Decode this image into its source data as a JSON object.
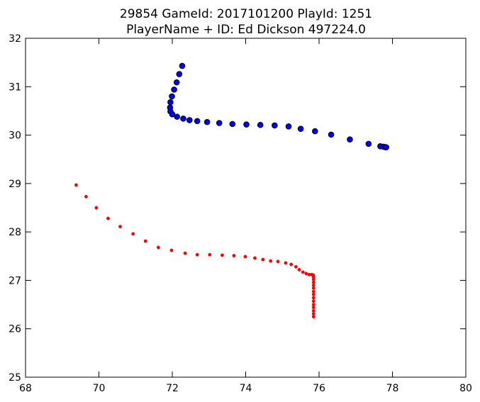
{
  "chart_data": {
    "type": "scatter",
    "title": "29854 GameId: 2017101200 PlayId: 1251",
    "subtitle": "PlayerName + ID: Ed Dickson 497224.0",
    "xlabel": "",
    "ylabel": "",
    "xlim": [
      68,
      80
    ],
    "ylim": [
      25,
      32
    ],
    "xticks": [
      68,
      70,
      72,
      74,
      76,
      78,
      80
    ],
    "yticks": [
      25,
      26,
      27,
      28,
      29,
      30,
      31,
      32
    ],
    "grid": false,
    "legend": "none",
    "series": [
      {
        "color": "#0000ff",
        "marker": "circle-large",
        "points": [
          [
            72.27,
            31.43
          ],
          [
            72.19,
            31.26
          ],
          [
            72.12,
            31.09
          ],
          [
            72.05,
            30.94
          ],
          [
            71.99,
            30.8
          ],
          [
            71.95,
            30.68
          ],
          [
            71.94,
            30.57
          ],
          [
            71.95,
            30.49
          ],
          [
            72.0,
            30.43
          ],
          [
            72.13,
            30.38
          ],
          [
            72.3,
            30.34
          ],
          [
            72.47,
            30.31
          ],
          [
            72.68,
            30.29
          ],
          [
            72.95,
            30.27
          ],
          [
            73.28,
            30.25
          ],
          [
            73.64,
            30.23
          ],
          [
            74.02,
            30.22
          ],
          [
            74.4,
            30.21
          ],
          [
            74.79,
            30.2
          ],
          [
            75.17,
            30.18
          ],
          [
            75.5,
            30.13
          ],
          [
            75.89,
            30.08
          ],
          [
            76.33,
            30.01
          ],
          [
            76.84,
            29.91
          ],
          [
            77.35,
            29.82
          ],
          [
            77.67,
            29.77
          ],
          [
            77.76,
            29.76
          ],
          [
            77.81,
            29.75
          ],
          [
            77.83,
            29.75
          ]
        ]
      },
      {
        "color": "#ff0000",
        "marker": "circle-small",
        "points": [
          [
            69.38,
            28.97
          ],
          [
            69.65,
            28.73
          ],
          [
            69.93,
            28.5
          ],
          [
            70.25,
            28.28
          ],
          [
            70.58,
            28.11
          ],
          [
            70.93,
            27.96
          ],
          [
            71.27,
            27.81
          ],
          [
            71.62,
            27.68
          ],
          [
            71.98,
            27.62
          ],
          [
            72.35,
            27.56
          ],
          [
            72.68,
            27.53
          ],
          [
            73.02,
            27.53
          ],
          [
            73.36,
            27.52
          ],
          [
            73.68,
            27.51
          ],
          [
            73.99,
            27.49
          ],
          [
            74.25,
            27.46
          ],
          [
            74.47,
            27.43
          ],
          [
            74.68,
            27.4
          ],
          [
            74.88,
            27.39
          ],
          [
            75.09,
            27.36
          ],
          [
            75.24,
            27.33
          ],
          [
            75.37,
            27.28
          ],
          [
            75.46,
            27.22
          ],
          [
            75.56,
            27.17
          ],
          [
            75.65,
            27.14
          ],
          [
            75.73,
            27.12
          ],
          [
            75.8,
            27.12
          ],
          [
            75.84,
            27.11
          ],
          [
            75.85,
            27.07
          ],
          [
            75.85,
            27.02
          ],
          [
            75.85,
            26.96
          ],
          [
            75.85,
            26.9
          ],
          [
            75.85,
            26.84
          ],
          [
            75.85,
            26.77
          ],
          [
            75.85,
            26.71
          ],
          [
            75.85,
            26.64
          ],
          [
            75.85,
            26.57
          ],
          [
            75.85,
            26.5
          ],
          [
            75.85,
            26.44
          ],
          [
            75.85,
            26.37
          ],
          [
            75.85,
            26.31
          ],
          [
            75.85,
            26.25
          ]
        ]
      }
    ]
  }
}
